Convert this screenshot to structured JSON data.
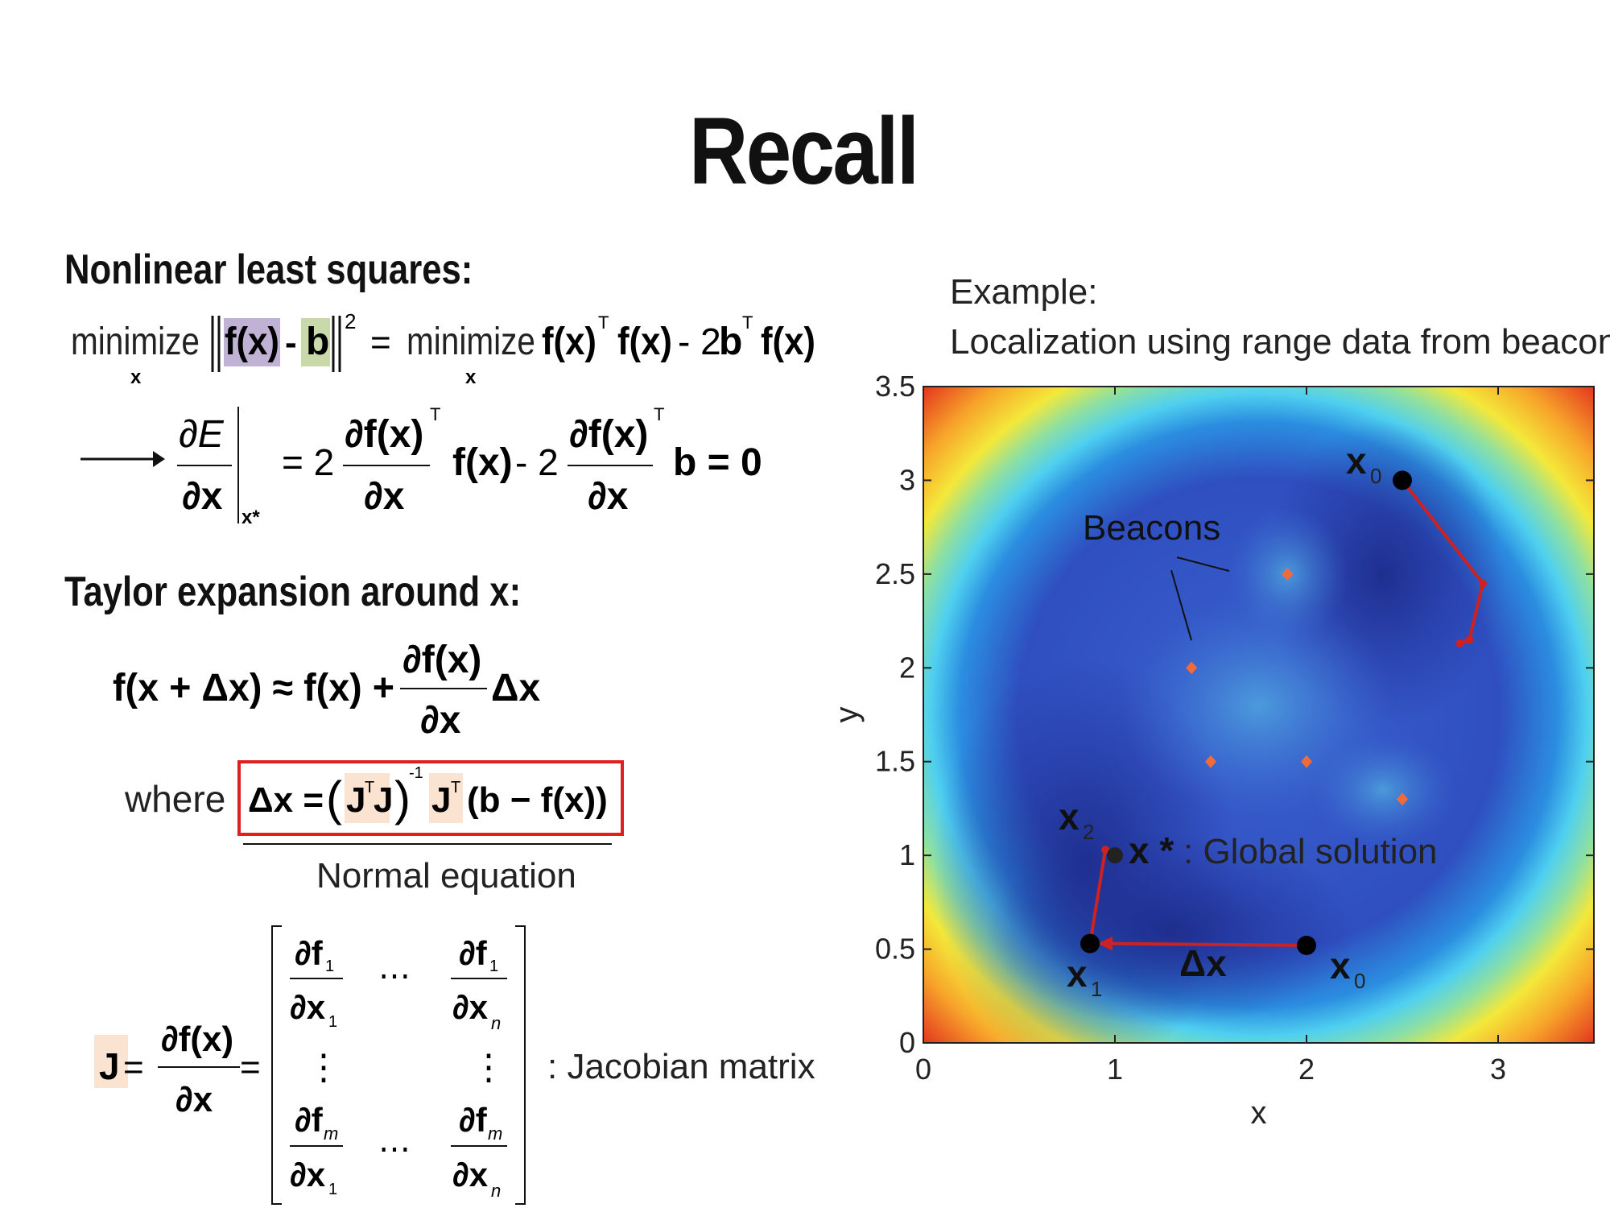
{
  "slide": {
    "title": "Recall",
    "section1": "Nonlinear least squares:",
    "section2": "Taylor expansion around x:",
    "where_label": "where",
    "normal_eq_label": "Normal equation",
    "jacobian_label": ": Jacobian matrix"
  },
  "eq1": {
    "minimize": "minimize",
    "sub": "x",
    "fx": "f(x)",
    "minus": "-",
    "b": "b",
    "sq": "2",
    "equals": "=",
    "rhs_fx": "f(x)",
    "rhs_T": "T",
    "rhs_fx2": "f(x)",
    "rhs_minus2b": "- 2",
    "rhs_b": "b",
    "rhs_T2": "T",
    "rhs_fx3": "f(x)"
  },
  "eq2": {
    "dE": "∂E",
    "dx": "∂x",
    "at": "x*",
    "eq2": "= 2",
    "dfx": "∂f(x)",
    "T": "T",
    "fx": "f(x)",
    "minus2": "- 2",
    "b0": "b = 0"
  },
  "eq3": {
    "lhs": "f(x + Δx) ≈ f(x) +",
    "num": "∂f(x)",
    "den": "∂x",
    "dx": "Δx"
  },
  "eq4": {
    "dx": "Δx =",
    "JT": "J",
    "T": "T",
    "J": "J",
    "inv": "-1",
    "JT2": "J",
    "T2": "T",
    "rest": "(b − f(x))"
  },
  "eq5": {
    "J": "J",
    "eq": "=",
    "num": "∂f(x)",
    "den": "∂x",
    "eq2": "=",
    "df1": "∂f",
    "dfm": "∂f",
    "dx": "∂x",
    "s1": "1",
    "sm": "m",
    "sn": "n",
    "dots": "⋯",
    "vdots": "⋮"
  },
  "example": {
    "line1": "Example:",
    "line2": "Localization using range data from beacons",
    "beacons_label": "Beacons",
    "global_label": ": Global solution",
    "xstar": "x *",
    "x0": "x",
    "x1": "x",
    "x2": "x",
    "sub0": "0",
    "sub1": "1",
    "sub2": "2",
    "delta": "Δx"
  },
  "colors": {
    "highlight_purple": "#bfb2d4",
    "highlight_green": "#c9d9a9",
    "highlight_peach": "#fbe3d1",
    "box_red": "#e0201f",
    "path_red": "#cc2222"
  },
  "chart_data": {
    "type": "heatmap",
    "xlabel": "x",
    "ylabel": "y",
    "xlim": [
      0,
      3.5
    ],
    "ylim": [
      0,
      3.5
    ],
    "xticks": [
      "0",
      "1",
      "2",
      "3"
    ],
    "yticks": [
      "0",
      "0.5",
      "1",
      "1.5",
      "2",
      "2.5",
      "3",
      "3.5"
    ],
    "xtick_values": [
      0,
      1,
      2,
      3
    ],
    "ytick_values": [
      0,
      0.5,
      1,
      1.5,
      2,
      2.5,
      3,
      3.5
    ],
    "beacons": [
      {
        "x": 1.9,
        "y": 2.5
      },
      {
        "x": 1.4,
        "y": 2.0
      },
      {
        "x": 1.5,
        "y": 1.5
      },
      {
        "x": 2.0,
        "y": 1.5
      },
      {
        "x": 2.5,
        "y": 1.3
      }
    ],
    "path_lower": [
      {
        "label": "x0",
        "x": 2.0,
        "y": 0.52
      },
      {
        "label": "x1",
        "x": 0.87,
        "y": 0.53
      },
      {
        "label": "x2",
        "x": 0.95,
        "y": 1.03
      }
    ],
    "path_upper": [
      {
        "x": 2.5,
        "y": 3.0
      },
      {
        "x": 2.92,
        "y": 2.45
      },
      {
        "x": 2.85,
        "y": 2.15
      },
      {
        "x": 2.8,
        "y": 2.13
      }
    ],
    "global_solution": {
      "x": 1.0,
      "y": 1.0
    }
  }
}
